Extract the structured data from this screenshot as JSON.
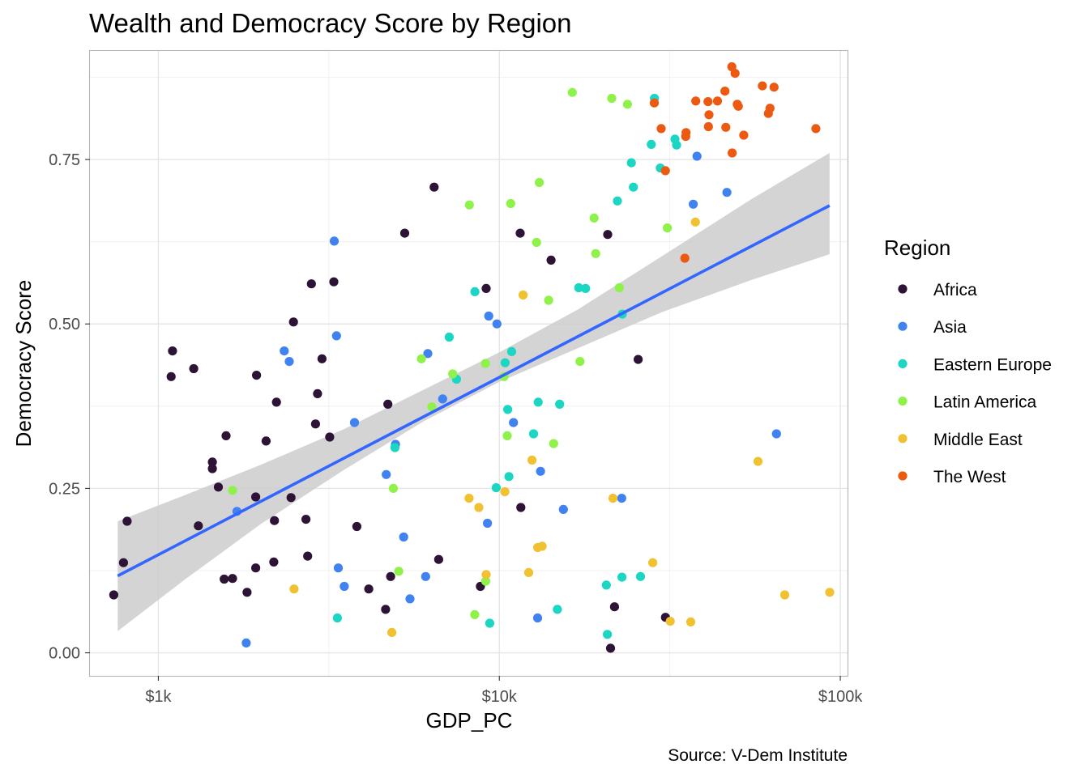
{
  "chart_data": {
    "type": "scatter",
    "title": "Wealth and Democracy Score by Region",
    "xlabel": "GDP_PC",
    "ylabel": "Democracy Score",
    "caption": "Source: V-Dem Institute",
    "x_scale": "log10",
    "xlim": [
      630,
      105000
    ],
    "ylim": [
      -0.035,
      0.915
    ],
    "x_ticks": [
      {
        "value": 1000,
        "label": "$1k"
      },
      {
        "value": 10000,
        "label": "$10k"
      },
      {
        "value": 100000,
        "label": "$100k"
      }
    ],
    "y_ticks": [
      {
        "value": 0.0,
        "label": "0.00"
      },
      {
        "value": 0.25,
        "label": "0.25"
      },
      {
        "value": 0.5,
        "label": "0.50"
      },
      {
        "value": 0.75,
        "label": "0.75"
      }
    ],
    "legend": {
      "title": "Region",
      "position": "right",
      "entries": [
        {
          "name": "Africa",
          "color": "#2d1335"
        },
        {
          "name": "Asia",
          "color": "#4083f0"
        },
        {
          "name": "Eastern Europe",
          "color": "#1ad6c3"
        },
        {
          "name": "Latin America",
          "color": "#8ff24a"
        },
        {
          "name": "Middle East",
          "color": "#f0c131"
        },
        {
          "name": "The West",
          "color": "#ec5a12"
        }
      ]
    },
    "trend": {
      "type": "linear fit (x log-scaled)",
      "color": "#3366ff",
      "x_range": [
        760,
        93000
      ],
      "y_start": 0.117,
      "y_end": 0.68,
      "ci_color": "#cccccc",
      "ci_band": [
        {
          "x": 760,
          "lo": 0.033,
          "hi": 0.2
        },
        {
          "x": 1200,
          "lo": 0.112,
          "hi": 0.24
        },
        {
          "x": 2000,
          "lo": 0.196,
          "hi": 0.286
        },
        {
          "x": 3500,
          "lo": 0.278,
          "hi": 0.34
        },
        {
          "x": 6000,
          "lo": 0.352,
          "hi": 0.4
        },
        {
          "x": 10000,
          "lo": 0.412,
          "hi": 0.457
        },
        {
          "x": 17000,
          "lo": 0.463,
          "hi": 0.522
        },
        {
          "x": 30000,
          "lo": 0.518,
          "hi": 0.603
        },
        {
          "x": 55000,
          "lo": 0.567,
          "hi": 0.69
        },
        {
          "x": 93000,
          "lo": 0.606,
          "hi": 0.76
        }
      ]
    },
    "series": [
      {
        "name": "Africa",
        "points": [
          [
            740,
            0.088
          ],
          [
            790,
            0.137
          ],
          [
            810,
            0.2
          ],
          [
            1090,
            0.42
          ],
          [
            1100,
            0.459
          ],
          [
            1270,
            0.432
          ],
          [
            1310,
            0.193
          ],
          [
            1440,
            0.29
          ],
          [
            1440,
            0.28
          ],
          [
            1500,
            0.252
          ],
          [
            1560,
            0.112
          ],
          [
            1580,
            0.33
          ],
          [
            1650,
            0.113
          ],
          [
            1820,
            0.092
          ],
          [
            1930,
            0.237
          ],
          [
            1930,
            0.129
          ],
          [
            1940,
            0.422
          ],
          [
            2070,
            0.322
          ],
          [
            2180,
            0.138
          ],
          [
            2190,
            0.201
          ],
          [
            2220,
            0.381
          ],
          [
            2450,
            0.236
          ],
          [
            2490,
            0.503
          ],
          [
            2710,
            0.203
          ],
          [
            2740,
            0.147
          ],
          [
            2810,
            0.561
          ],
          [
            2890,
            0.348
          ],
          [
            2930,
            0.394
          ],
          [
            3020,
            0.447
          ],
          [
            3180,
            0.328
          ],
          [
            3270,
            0.564
          ],
          [
            3820,
            0.192
          ],
          [
            4140,
            0.097
          ],
          [
            4640,
            0.066
          ],
          [
            4710,
            0.378
          ],
          [
            4800,
            0.116
          ],
          [
            5280,
            0.638
          ],
          [
            6440,
            0.708
          ],
          [
            6640,
            0.142
          ],
          [
            8800,
            0.101
          ],
          [
            9150,
            0.554
          ],
          [
            11510,
            0.638
          ],
          [
            11560,
            0.221
          ],
          [
            14180,
            0.597
          ],
          [
            20790,
            0.636
          ],
          [
            21190,
            0.007
          ],
          [
            21760,
            0.07
          ],
          [
            25540,
            0.446
          ],
          [
            30700,
            0.054
          ]
        ]
      },
      {
        "name": "Asia",
        "points": [
          [
            1700,
            0.215
          ],
          [
            1810,
            0.015
          ],
          [
            2340,
            0.459
          ],
          [
            2420,
            0.443
          ],
          [
            3280,
            0.626
          ],
          [
            3330,
            0.482
          ],
          [
            3370,
            0.129
          ],
          [
            3510,
            0.101
          ],
          [
            3760,
            0.35
          ],
          [
            4660,
            0.271
          ],
          [
            4960,
            0.317
          ],
          [
            5240,
            0.176
          ],
          [
            5470,
            0.082
          ],
          [
            6080,
            0.116
          ],
          [
            6170,
            0.455
          ],
          [
            6820,
            0.386
          ],
          [
            9230,
            0.197
          ],
          [
            9310,
            0.512
          ],
          [
            9840,
            0.5
          ],
          [
            11000,
            0.35
          ],
          [
            12950,
            0.053
          ],
          [
            13210,
            0.276
          ],
          [
            15410,
            0.218
          ],
          [
            22850,
            0.235
          ],
          [
            37040,
            0.682
          ],
          [
            37990,
            0.755
          ],
          [
            46480,
            0.7
          ],
          [
            64990,
            0.333
          ]
        ]
      },
      {
        "name": "Eastern Europe",
        "points": [
          [
            3350,
            0.053
          ],
          [
            4940,
            0.312
          ],
          [
            7130,
            0.48
          ],
          [
            7490,
            0.416
          ],
          [
            8480,
            0.549
          ],
          [
            9370,
            0.045
          ],
          [
            9790,
            0.251
          ],
          [
            10400,
            0.441
          ],
          [
            10580,
            0.37
          ],
          [
            10670,
            0.268
          ],
          [
            10870,
            0.458
          ],
          [
            12600,
            0.333
          ],
          [
            13000,
            0.381
          ],
          [
            14800,
            0.066
          ],
          [
            15030,
            0.378
          ],
          [
            17100,
            0.555
          ],
          [
            17900,
            0.554
          ],
          [
            20590,
            0.103
          ],
          [
            20740,
            0.028
          ],
          [
            22200,
            0.687
          ],
          [
            22890,
            0.115
          ],
          [
            22940,
            0.515
          ],
          [
            24390,
            0.745
          ],
          [
            24720,
            0.708
          ],
          [
            25950,
            0.116
          ],
          [
            27910,
            0.773
          ],
          [
            28510,
            0.843
          ],
          [
            29650,
            0.737
          ],
          [
            32730,
            0.781
          ],
          [
            33100,
            0.772
          ]
        ]
      },
      {
        "name": "Latin America",
        "points": [
          [
            1650,
            0.247
          ],
          [
            4890,
            0.25
          ],
          [
            5070,
            0.124
          ],
          [
            5910,
            0.447
          ],
          [
            6340,
            0.374
          ],
          [
            7300,
            0.424
          ],
          [
            8170,
            0.681
          ],
          [
            8470,
            0.058
          ],
          [
            9120,
            0.109
          ],
          [
            9110,
            0.44
          ],
          [
            10320,
            0.42
          ],
          [
            10550,
            0.33
          ],
          [
            10800,
            0.683
          ],
          [
            12860,
            0.624
          ],
          [
            13100,
            0.715
          ],
          [
            13950,
            0.536
          ],
          [
            14430,
            0.318
          ],
          [
            16370,
            0.852
          ],
          [
            17240,
            0.443
          ],
          [
            18960,
            0.661
          ],
          [
            19170,
            0.607
          ],
          [
            21360,
            0.843
          ],
          [
            22490,
            0.555
          ],
          [
            23760,
            0.834
          ],
          [
            31090,
            0.646
          ]
        ]
      },
      {
        "name": "Middle East",
        "points": [
          [
            2500,
            0.097
          ],
          [
            4840,
            0.031
          ],
          [
            8150,
            0.235
          ],
          [
            8710,
            0.221
          ],
          [
            9150,
            0.119
          ],
          [
            10380,
            0.245
          ],
          [
            11740,
            0.544
          ],
          [
            12190,
            0.122
          ],
          [
            12470,
            0.293
          ],
          [
            12960,
            0.16
          ],
          [
            13350,
            0.162
          ],
          [
            21540,
            0.235
          ],
          [
            28180,
            0.137
          ],
          [
            31720,
            0.048
          ],
          [
            36420,
            0.047
          ],
          [
            37570,
            0.655
          ],
          [
            57360,
            0.291
          ],
          [
            68700,
            0.088
          ],
          [
            93110,
            0.092
          ]
        ]
      },
      {
        "name": "The West",
        "points": [
          [
            29830,
            0.797
          ],
          [
            28470,
            0.836
          ],
          [
            30690,
            0.733
          ],
          [
            34990,
            0.6
          ],
          [
            35200,
            0.785
          ],
          [
            35290,
            0.791
          ],
          [
            37670,
            0.839
          ],
          [
            40920,
            0.838
          ],
          [
            41040,
            0.8
          ],
          [
            41200,
            0.818
          ],
          [
            43640,
            0.839
          ],
          [
            45890,
            0.854
          ],
          [
            46150,
            0.799
          ],
          [
            48170,
            0.76
          ],
          [
            48080,
            0.891
          ],
          [
            49140,
            0.881
          ],
          [
            49870,
            0.834
          ],
          [
            50220,
            0.831
          ],
          [
            52100,
            0.787
          ],
          [
            59080,
            0.862
          ],
          [
            61520,
            0.82
          ],
          [
            62190,
            0.828
          ],
          [
            63940,
            0.86
          ],
          [
            84790,
            0.797
          ]
        ]
      }
    ]
  }
}
